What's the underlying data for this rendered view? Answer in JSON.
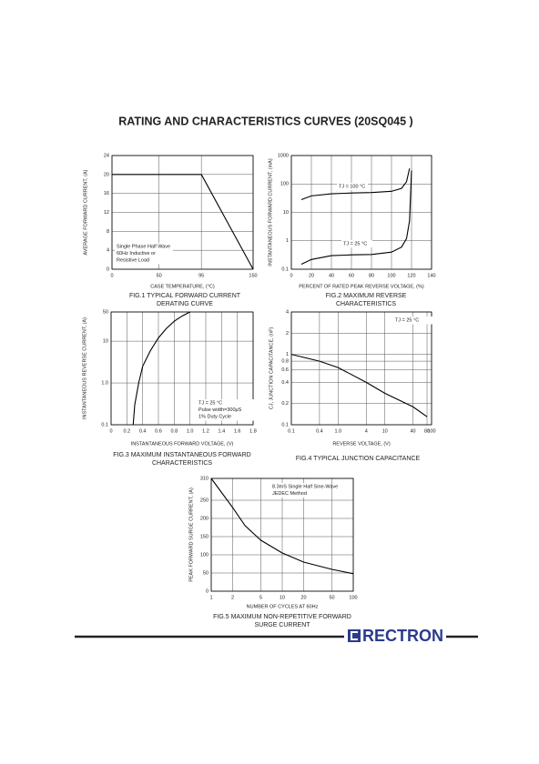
{
  "page": {
    "title": "RATING AND CHARACTERISTICS CURVES (20SQ045 )",
    "brand": "RECTRON"
  },
  "chart_data": [
    {
      "type": "line",
      "caption": [
        "FIG.1 TYPICAL FORWARD CURRENT",
        "DERATING CURVE"
      ],
      "x_label": "CASE TEMPERATURE, (°C)",
      "y_label": "AVERAGE FORWARD CURRENT, (A)",
      "annotation": [
        "Single Phase Half Wave",
        "60Hz Inductive or",
        "Resistive Load"
      ],
      "xlim": [
        0,
        150
      ],
      "xticks": [
        0,
        50,
        95,
        150
      ],
      "ylim": [
        0,
        24
      ],
      "yticks": [
        0,
        4,
        8,
        12,
        16,
        20,
        24
      ],
      "xscale": "linear",
      "yscale": "linear",
      "grid": true,
      "series": [
        {
          "x": [
            0,
            95,
            150
          ],
          "values": [
            20,
            20,
            0
          ],
          "color": "#000000"
        }
      ]
    },
    {
      "type": "line",
      "caption": [
        "FIG.2 MAXIMUM REVERSE",
        "CHARACTERISTICS"
      ],
      "x_label": "PERCENT OF RATED PEAK REVERSE VOLTAGE, (%)",
      "y_label": "INSTANTANEOUS FORWARD CURRENT, (mA)",
      "xlim": [
        0,
        140
      ],
      "xticks": [
        0,
        20,
        40,
        60,
        80,
        100,
        120,
        140
      ],
      "ylim": [
        0.1,
        1000
      ],
      "yticks": [
        0.1,
        1,
        10,
        100,
        1000
      ],
      "xscale": "linear",
      "yscale": "log",
      "grid": true,
      "series": [
        {
          "name": "TJ = 100 °C",
          "color": "#000000",
          "x": [
            10,
            20,
            40,
            60,
            80,
            100,
            110,
            115,
            118
          ],
          "values": [
            28,
            38,
            45,
            48,
            50,
            55,
            70,
            120,
            350
          ]
        },
        {
          "name": "TJ = 25 °C",
          "color": "#000000",
          "x": [
            10,
            20,
            40,
            60,
            80,
            100,
            110,
            115,
            118,
            120
          ],
          "values": [
            0.15,
            0.22,
            0.3,
            0.32,
            0.33,
            0.4,
            0.6,
            1.2,
            5,
            300
          ]
        }
      ]
    },
    {
      "type": "line",
      "caption": [
        "FIG.3 MAXIMUM INSTANTANEOUS FORWARD",
        "CHARACTERISTICS"
      ],
      "x_label": "INSTANTANEOUS FORWARD VOLTAGE, (V)",
      "y_label": "INSTANTANEOUS REVERSE CURRENT, (A)",
      "annotation": [
        "TJ = 25 °C",
        "Pulse width=300µS",
        "1% Duty Cycle"
      ],
      "xlim": [
        0,
        1.8
      ],
      "xticks": [
        0,
        0.2,
        0.4,
        0.6,
        0.8,
        {
          "value": 1,
          "label": "1.0"
        },
        1.2,
        1.4,
        1.6,
        1.8
      ],
      "ylim": [
        0.1,
        50
      ],
      "yticks": [
        0.1,
        {
          "value": 1,
          "label": "1.0"
        },
        10,
        50
      ],
      "xscale": "linear",
      "yscale": "log",
      "grid": true,
      "series": [
        {
          "color": "#000000",
          "x": [
            0.28,
            0.3,
            0.35,
            0.4,
            0.5,
            0.6,
            0.7,
            0.8,
            0.9,
            1.0
          ],
          "values": [
            0.1,
            0.3,
            1,
            2.5,
            6,
            12,
            20,
            30,
            40,
            50
          ]
        }
      ]
    },
    {
      "type": "line",
      "caption": [
        "FIG.4 TYPICAL JUNCTION CAPACITANCE"
      ],
      "x_label": "REVERSE VOLTAGE, (V)",
      "y_label": "CJ, JUNCTION CAPACITANCE, (nF)",
      "annotation": [
        "TJ = 25 °C"
      ],
      "xlim": [
        0.1,
        100
      ],
      "xticks": [
        0.1,
        0.4,
        {
          "value": 1,
          "label": "1.0"
        },
        4,
        10,
        40,
        80,
        100
      ],
      "ylim": [
        0.1,
        4
      ],
      "yticks": [
        0.1,
        0.2,
        0.4,
        0.6,
        0.8,
        1,
        2,
        4
      ],
      "xscale": "log",
      "yscale": "log",
      "grid": true,
      "series": [
        {
          "color": "#000000",
          "x": [
            0.1,
            0.4,
            1,
            4,
            10,
            40,
            80
          ],
          "values": [
            1,
            0.8,
            0.65,
            0.4,
            0.28,
            0.18,
            0.13
          ]
        }
      ]
    },
    {
      "type": "line",
      "caption": [
        "FIG.5 MAXIMUM NON-REPETITIVE FORWARD",
        "SURGE CURRENT"
      ],
      "x_label": "NUMBER OF CYCLES AT 60Hz",
      "y_label": "PEAK FORWARD SURGE CURRENT, (A)",
      "annotation": [
        "8.3mS Single Half Sine-Wave",
        "JEDEC Method"
      ],
      "xlim": [
        1,
        100
      ],
      "xticks": [
        1,
        2,
        5,
        10,
        20,
        50,
        100
      ],
      "ylim": [
        0,
        310
      ],
      "yticks": [
        0,
        50,
        100,
        150,
        200,
        250,
        310
      ],
      "xscale": "log",
      "yscale": "linear",
      "grid": true,
      "series": [
        {
          "color": "#000000",
          "x": [
            1,
            2,
            3,
            5,
            10,
            20,
            50,
            100
          ],
          "values": [
            310,
            230,
            180,
            140,
            105,
            80,
            60,
            48
          ]
        }
      ]
    }
  ]
}
